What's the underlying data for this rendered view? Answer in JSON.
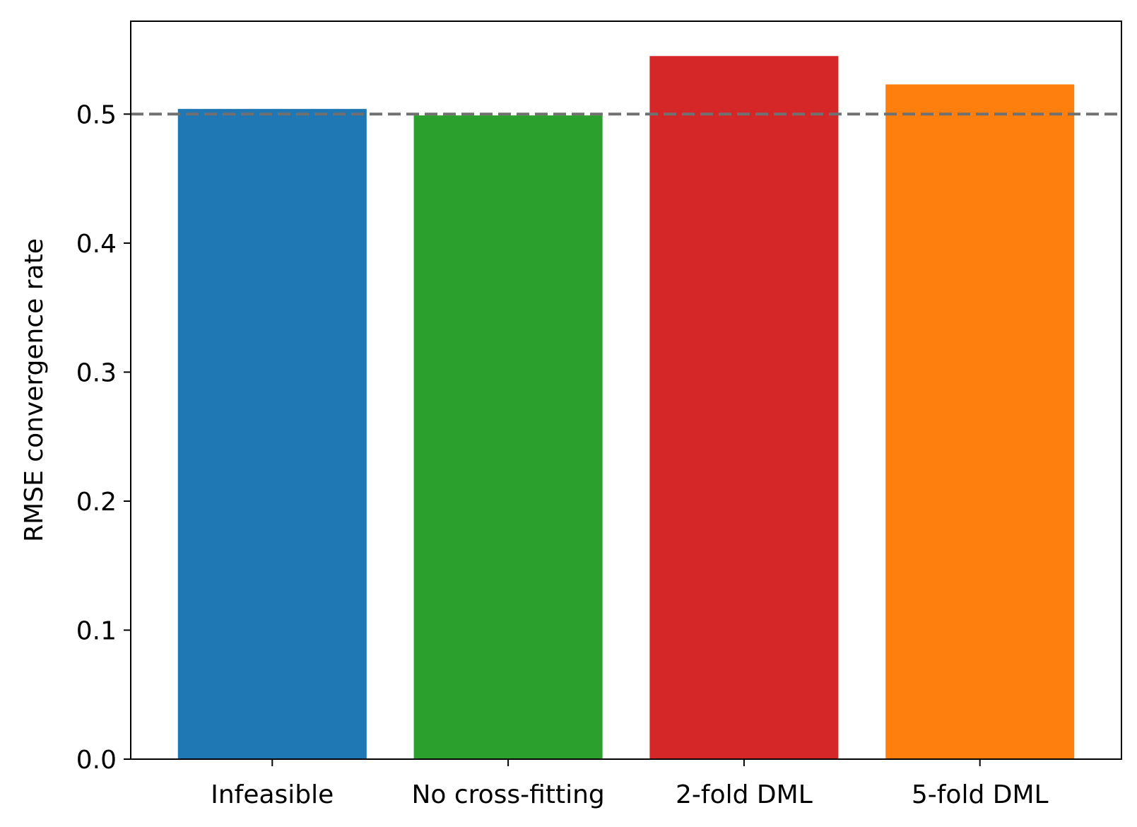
{
  "chart_data": {
    "type": "bar",
    "title": "",
    "xlabel": "",
    "ylabel": "RMSE convergence rate",
    "categories": [
      "Infeasible",
      "No cross-fitting",
      "2-fold DML",
      "5-fold DML"
    ],
    "values": [
      0.504,
      0.499,
      0.545,
      0.523
    ],
    "colors": [
      "#1f77b4",
      "#2ca02c",
      "#d62728",
      "#ff7f0e"
    ],
    "ylim": [
      0,
      0.572
    ],
    "yticks": [
      {
        "value": 0.0,
        "label": "0.0"
      },
      {
        "value": 0.1,
        "label": "0.1"
      },
      {
        "value": 0.2,
        "label": "0.2"
      },
      {
        "value": 0.3,
        "label": "0.3"
      },
      {
        "value": 0.4,
        "label": "0.4"
      },
      {
        "value": 0.5,
        "label": "0.5"
      }
    ],
    "reference_line": {
      "value": 0.5,
      "style": "dashed",
      "color": "#707070"
    },
    "grid": false,
    "legend": "none"
  }
}
